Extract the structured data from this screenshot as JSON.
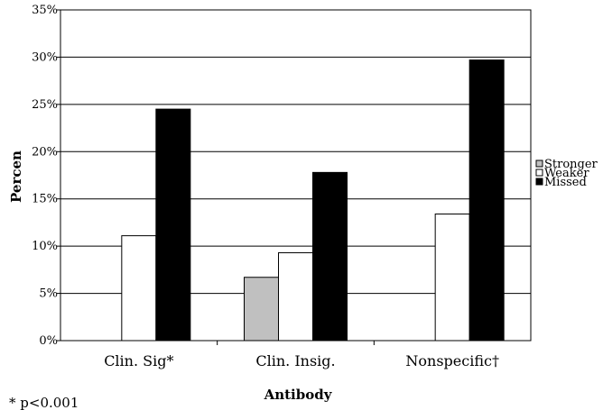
{
  "chart_data": {
    "type": "bar",
    "title": "",
    "xlabel": "Antibody",
    "ylabel": "Percen",
    "ylim": [
      0,
      35
    ],
    "y_ticks": [
      "0%",
      "5%",
      "10%",
      "15%",
      "20%",
      "25%",
      "30%",
      "35%"
    ],
    "grid": true,
    "legend_position": "right",
    "categories": [
      "Clin. Sig*",
      "Clin. Insig.",
      "Nonspecific†"
    ],
    "series": [
      {
        "name": "Stronger",
        "color": "#c0c0c0",
        "values": [
          0,
          6.7,
          0
        ]
      },
      {
        "name": "Weaker",
        "color": "#ffffff",
        "values": [
          11.1,
          9.3,
          13.4
        ]
      },
      {
        "name": "Missed",
        "color": "#000000",
        "values": [
          24.5,
          17.8,
          29.7
        ]
      }
    ],
    "footnote": "* p<0.001"
  }
}
